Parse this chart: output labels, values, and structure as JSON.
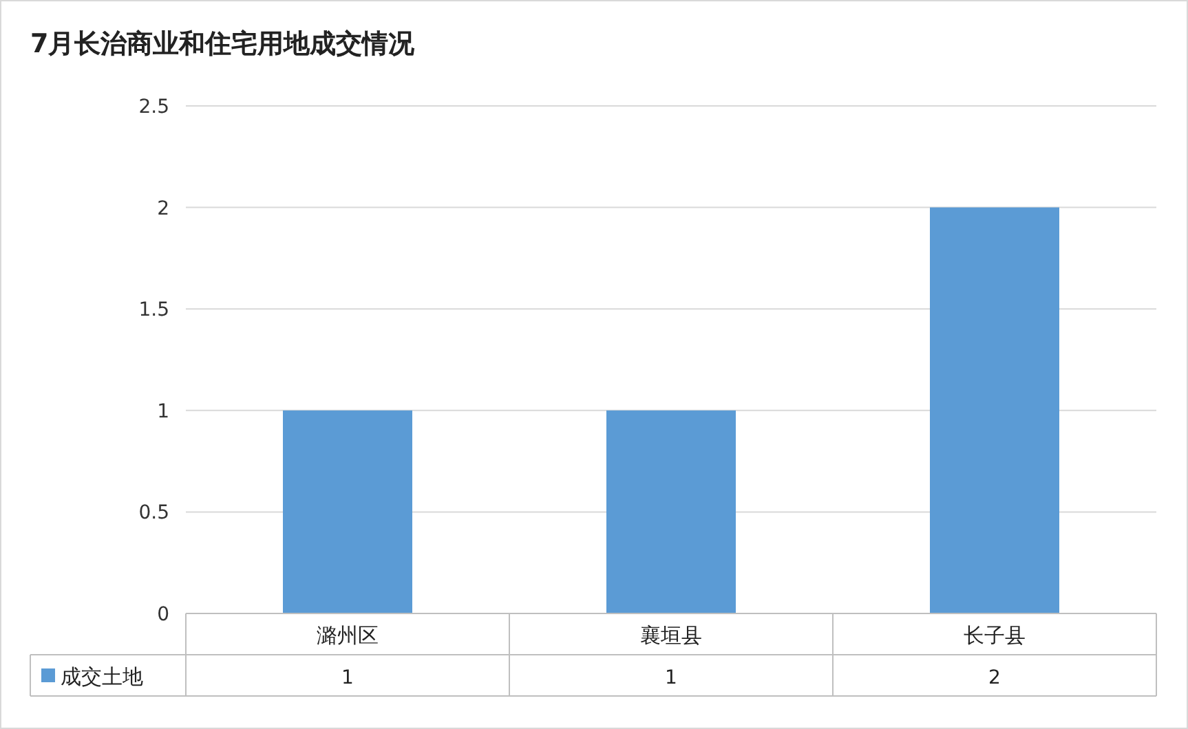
{
  "chart_data": {
    "type": "bar",
    "title": "7月长治商业和住宅用地成交情况",
    "categories": [
      "潞州区",
      "襄垣县",
      "长子县"
    ],
    "series": [
      {
        "name": "成交土地",
        "color": "#5b9bd5",
        "values": [
          1,
          1,
          2
        ]
      }
    ],
    "ylim": [
      0,
      2.5
    ],
    "yticks": [
      0,
      0.5,
      1,
      1.5,
      2,
      2.5
    ],
    "grid": "y",
    "legend": "bottom",
    "data_labels": true
  }
}
